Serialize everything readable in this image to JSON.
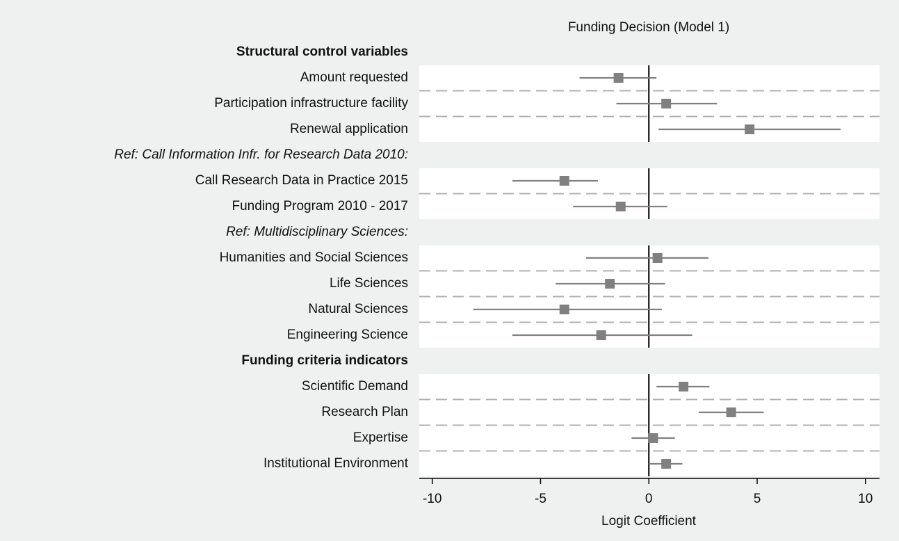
{
  "chart_data": {
    "type": "forest",
    "title": "Funding Decision (Model 1)",
    "x_label": "Logit Coefficient",
    "categories": [
      "Structural control variables",
      "Amount requested",
      "Participation infrastructure facility",
      "Renewal application",
      "Ref: Call Information Infr. for Research Data 2010:",
      "Call Research Data in Practice 2015",
      "Funding Program 2010 - 2017",
      "Ref: Multidisciplinary Sciences:",
      "Humanities and Social Sciences",
      "Life Sciences",
      "Natural Sciences",
      "Engineering Science",
      "Funding criteria indicators",
      "Scientific Demand",
      "Research Plan",
      "Expertise",
      "Institutional Environment"
    ],
    "category_styles": [
      "bold",
      "normal",
      "normal",
      "normal",
      "italic",
      "normal",
      "normal",
      "italic",
      "normal",
      "normal",
      "normal",
      "normal",
      "bold",
      "normal",
      "normal",
      "normal",
      "normal"
    ],
    "values": [
      null,
      -1.4,
      0.8,
      4.65,
      null,
      -3.9,
      -1.3,
      null,
      0.4,
      -1.8,
      -3.9,
      -2.2,
      null,
      1.6,
      3.8,
      0.2,
      0.8
    ],
    "lower": [
      null,
      -3.2,
      -1.5,
      0.45,
      null,
      -6.3,
      -3.5,
      null,
      -2.9,
      -4.3,
      -8.1,
      -6.3,
      null,
      0.35,
      2.3,
      -0.8,
      0.0
    ],
    "upper": [
      null,
      0.35,
      3.15,
      8.85,
      null,
      -2.35,
      0.85,
      null,
      2.75,
      0.75,
      0.6,
      2.0,
      null,
      2.8,
      5.3,
      1.2,
      1.55
    ],
    "color": "#808080",
    "xline": 0,
    "xlim": [
      -10.6,
      10.65
    ],
    "xticks": [
      -10,
      -5,
      0,
      5,
      10
    ]
  }
}
